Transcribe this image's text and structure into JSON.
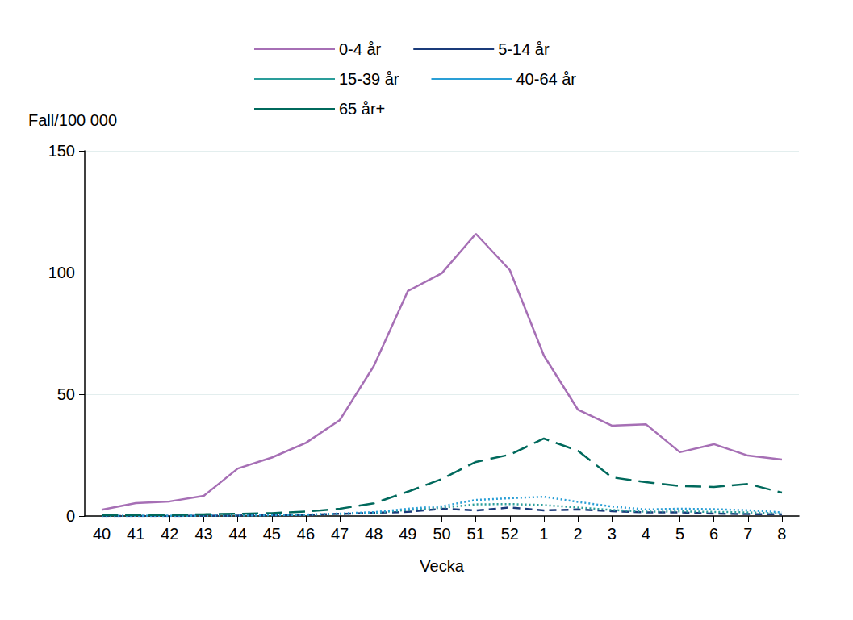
{
  "chart_data": {
    "type": "line",
    "x_label": "Vecka",
    "y_label": "Fall/100 000",
    "categories": [
      "40",
      "41",
      "42",
      "43",
      "44",
      "45",
      "46",
      "47",
      "48",
      "49",
      "50",
      "51",
      "52",
      "1",
      "2",
      "3",
      "4",
      "5",
      "6",
      "7",
      "8"
    ],
    "ylim": [
      0,
      150
    ],
    "yticks": [
      0,
      50,
      100,
      150
    ],
    "grid": true,
    "legend": "top",
    "series": [
      {
        "name": "0-4 år",
        "color": "#a66fb5",
        "line_style": "solid",
        "values": [
          2.6,
          5.3,
          6,
          8.3,
          19.5,
          24,
          30,
          39.4,
          61.6,
          92.4,
          99.7,
          115.9,
          101,
          65.9,
          43.7,
          37.1,
          37.7,
          26.2,
          29.5,
          24.8,
          23.2
        ]
      },
      {
        "name": "5-14 år",
        "color": "#1a3b7a",
        "line_style": "dashed",
        "values": [
          0,
          0,
          0,
          0.1,
          0.2,
          0.3,
          0.5,
          0.9,
          1.3,
          1.7,
          3,
          2.3,
          3.5,
          2.3,
          2.7,
          2,
          1.5,
          1.5,
          1,
          0.8,
          0.7
        ]
      },
      {
        "name": "15-39 år",
        "color": "#2a9d9a",
        "line_style": "dotted",
        "values": [
          0,
          0,
          0,
          0.1,
          0.2,
          0.3,
          0.5,
          0.8,
          1.3,
          2.5,
          3.4,
          4.8,
          4.9,
          4.5,
          3.5,
          2.5,
          1.8,
          1.9,
          1.7,
          1.5,
          1
        ]
      },
      {
        "name": "40-64 år",
        "color": "#2a9fd6",
        "line_style": "dotted",
        "values": [
          0,
          0.1,
          0.1,
          0.2,
          0.3,
          0.4,
          0.6,
          1,
          1.6,
          3,
          4,
          6.6,
          7.3,
          7.9,
          5.8,
          3.9,
          2.7,
          3,
          2.8,
          2.4,
          1.5
        ]
      },
      {
        "name": "65 år+",
        "color": "#00695c",
        "line_style": "longdash",
        "values": [
          0.3,
          0.4,
          0.4,
          0.7,
          0.9,
          1.2,
          1.8,
          3,
          5.2,
          10,
          15.2,
          22.2,
          25.2,
          31.8,
          26.8,
          15.9,
          13.9,
          12.3,
          11.9,
          13.2,
          9.6
        ]
      }
    ]
  }
}
